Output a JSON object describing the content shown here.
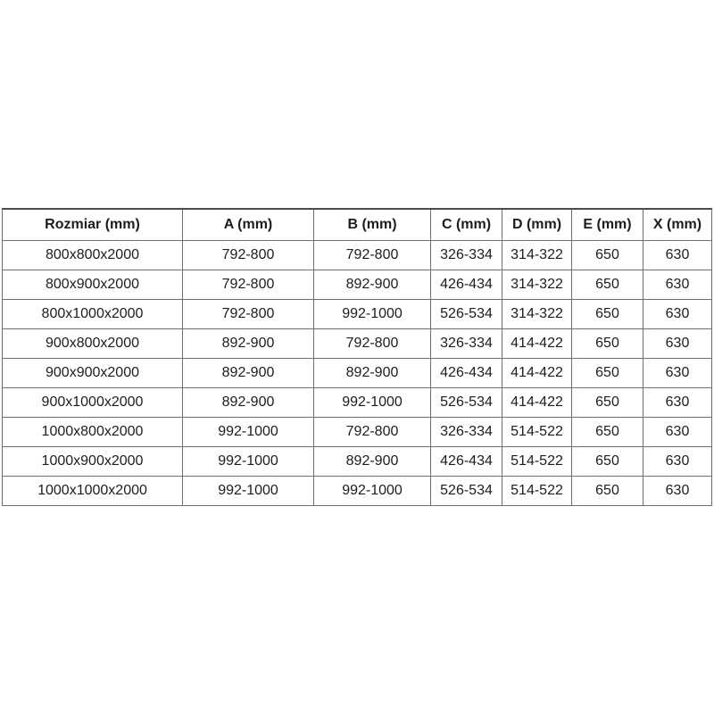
{
  "table": {
    "headers": [
      "Rozmiar (mm)",
      "A (mm)",
      "B (mm)",
      "C (mm)",
      "D (mm)",
      "E (mm)",
      "X (mm)"
    ],
    "rows": [
      [
        "800x800x2000",
        "792-800",
        "792-800",
        "326-334",
        "314-322",
        "650",
        "630"
      ],
      [
        "800x900x2000",
        "792-800",
        "892-900",
        "426-434",
        "314-322",
        "650",
        "630"
      ],
      [
        "800x1000x2000",
        "792-800",
        "992-1000",
        "526-534",
        "314-322",
        "650",
        "630"
      ],
      [
        "900x800x2000",
        "892-900",
        "792-800",
        "326-334",
        "414-422",
        "650",
        "630"
      ],
      [
        "900x900x2000",
        "892-900",
        "892-900",
        "426-434",
        "414-422",
        "650",
        "630"
      ],
      [
        "900x1000x2000",
        "892-900",
        "992-1000",
        "526-534",
        "414-422",
        "650",
        "630"
      ],
      [
        "1000x800x2000",
        "992-1000",
        "792-800",
        "326-334",
        "514-522",
        "650",
        "630"
      ],
      [
        "1000x900x2000",
        "992-1000",
        "892-900",
        "426-434",
        "514-522",
        "650",
        "630"
      ],
      [
        "1000x1000x2000",
        "992-1000",
        "992-1000",
        "526-534",
        "514-522",
        "650",
        "630"
      ]
    ],
    "colors": {
      "background": "#ffffff",
      "border": "#6e6e6e",
      "border_top": "#4b4b4b",
      "text": "#1d1d1d"
    }
  }
}
